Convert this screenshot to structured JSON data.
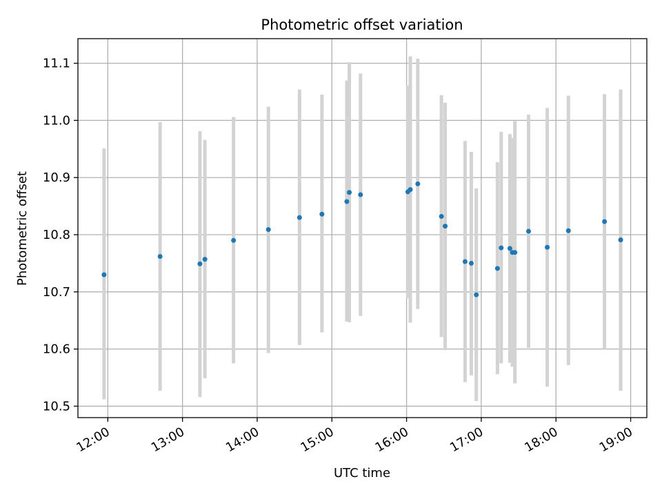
{
  "chart_data": {
    "type": "scatter",
    "title": "Photometric offset variation",
    "xlabel": "UTC time",
    "ylabel": "Photometric offset",
    "xlim": [
      "11:36",
      "19:13"
    ],
    "ylim": [
      10.48,
      11.143
    ],
    "x_ticks": [
      "12:00",
      "13:00",
      "14:00",
      "15:00",
      "16:00",
      "17:00",
      "18:00",
      "19:00"
    ],
    "y_ticks": [
      10.5,
      10.6,
      10.7,
      10.8,
      10.9,
      11.0,
      11.1
    ],
    "y_tick_labels": [
      "10.5",
      "10.6",
      "10.7",
      "10.8",
      "10.9",
      "11.0",
      "11.1"
    ],
    "grid": true,
    "marker_color": "#1f77b4",
    "errorbar_color": "#d3d3d3",
    "points": [
      {
        "t": "11:57",
        "y": 10.73,
        "ylo": 10.512,
        "yhi": 10.951
      },
      {
        "t": "12:42",
        "y": 10.762,
        "ylo": 10.527,
        "yhi": 10.997
      },
      {
        "t": "13:14",
        "y": 10.749,
        "ylo": 10.516,
        "yhi": 10.981
      },
      {
        "t": "13:18",
        "y": 10.757,
        "ylo": 10.549,
        "yhi": 10.966
      },
      {
        "t": "13:41",
        "y": 10.79,
        "ylo": 10.575,
        "yhi": 11.006
      },
      {
        "t": "14:09",
        "y": 10.809,
        "ylo": 10.593,
        "yhi": 11.024
      },
      {
        "t": "14:34",
        "y": 10.83,
        "ylo": 10.607,
        "yhi": 11.054
      },
      {
        "t": "14:52",
        "y": 10.836,
        "ylo": 10.629,
        "yhi": 11.045
      },
      {
        "t": "15:12",
        "y": 10.858,
        "ylo": 10.648,
        "yhi": 11.07
      },
      {
        "t": "15:14",
        "y": 10.874,
        "ylo": 10.647,
        "yhi": 11.102
      },
      {
        "t": "15:23",
        "y": 10.87,
        "ylo": 10.658,
        "yhi": 11.082
      },
      {
        "t": "16:01",
        "y": 10.875,
        "ylo": 10.689,
        "yhi": 11.061
      },
      {
        "t": "16:03",
        "y": 10.879,
        "ylo": 10.646,
        "yhi": 11.112
      },
      {
        "t": "16:09",
        "y": 10.889,
        "ylo": 10.67,
        "yhi": 11.108
      },
      {
        "t": "16:28",
        "y": 10.832,
        "ylo": 10.621,
        "yhi": 11.044
      },
      {
        "t": "16:31",
        "y": 10.815,
        "ylo": 10.598,
        "yhi": 11.031
      },
      {
        "t": "16:47",
        "y": 10.753,
        "ylo": 10.542,
        "yhi": 10.964
      },
      {
        "t": "16:52",
        "y": 10.75,
        "ylo": 10.554,
        "yhi": 10.945
      },
      {
        "t": "16:56",
        "y": 10.695,
        "ylo": 10.509,
        "yhi": 10.881
      },
      {
        "t": "17:13",
        "y": 10.741,
        "ylo": 10.556,
        "yhi": 10.927
      },
      {
        "t": "17:16",
        "y": 10.777,
        "ylo": 10.575,
        "yhi": 10.98
      },
      {
        "t": "17:23",
        "y": 10.776,
        "ylo": 10.576,
        "yhi": 10.976
      },
      {
        "t": "17:25",
        "y": 10.769,
        "ylo": 10.569,
        "yhi": 10.969
      },
      {
        "t": "17:27",
        "y": 10.769,
        "ylo": 10.54,
        "yhi": 10.999
      },
      {
        "t": "17:38",
        "y": 10.806,
        "ylo": 10.602,
        "yhi": 11.01
      },
      {
        "t": "17:53",
        "y": 10.778,
        "ylo": 10.534,
        "yhi": 11.022
      },
      {
        "t": "18:10",
        "y": 10.807,
        "ylo": 10.572,
        "yhi": 11.043
      },
      {
        "t": "18:39",
        "y": 10.823,
        "ylo": 10.6,
        "yhi": 11.046
      },
      {
        "t": "18:52",
        "y": 10.791,
        "ylo": 10.527,
        "yhi": 11.054
      }
    ]
  }
}
